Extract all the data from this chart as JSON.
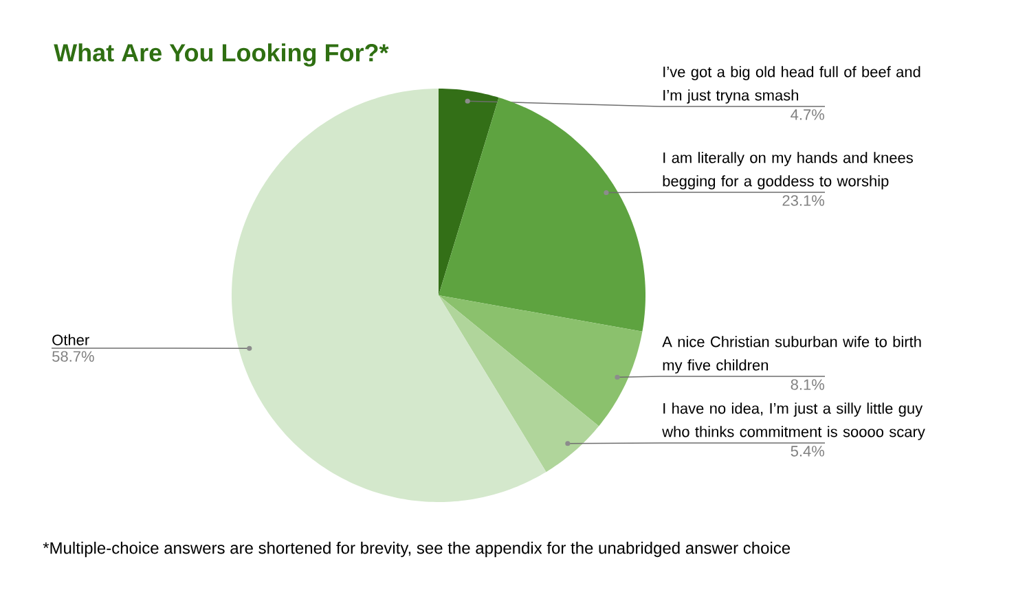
{
  "chart_data": {
    "type": "pie",
    "title": "What Are You Looking For?*",
    "categories": [
      "I’ve got a big old head full of beef and I’m just tryna smash",
      "I am literally on my hands and knees begging for a goddess to worship",
      "A nice Christian suburban wife to birth my five children",
      "I have no idea, I’m just a silly little guy who thinks commitment is soooo scary",
      "Other"
    ],
    "values": [
      4.7,
      23.1,
      8.1,
      5.4,
      58.7
    ],
    "value_labels": [
      "4.7%",
      "23.1%",
      "8.1%",
      "5.4%",
      "58.7%"
    ],
    "colors": [
      "#336f17",
      "#5ea340",
      "#8bc16d",
      "#b0d59b",
      "#d4e8cc"
    ],
    "annotations": [
      "*Multiple-choice answers are shortened for brevity, see the appendix for the unabridged answer choice"
    ]
  }
}
